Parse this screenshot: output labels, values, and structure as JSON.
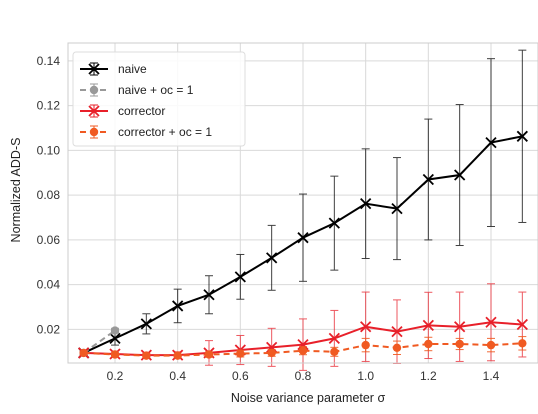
{
  "chart_data": {
    "type": "line",
    "xlabel": "Noise variance parameter σ",
    "ylabel": "Normalized ADD-S",
    "xlim": [
      0.05,
      1.55
    ],
    "ylim": [
      0.005,
      0.148
    ],
    "xticks": [
      0.2,
      0.4,
      0.6,
      0.8,
      1.0,
      1.2,
      1.4
    ],
    "xtick_labels": [
      "0.2",
      "0.4",
      "0.6",
      "0.8",
      "1.0",
      "1.2",
      "1.4"
    ],
    "yticks": [
      0.02,
      0.04,
      0.06,
      0.08,
      0.1,
      0.12,
      0.14
    ],
    "ytick_labels": [
      "0.02",
      "0.04",
      "0.06",
      "0.08",
      "0.10",
      "0.12",
      "0.14"
    ],
    "grid": true,
    "legend_position": "top-left",
    "series": [
      {
        "name": "naive",
        "color": "#000000",
        "marker": "x",
        "dashed": false,
        "x": [
          0.1,
          0.2,
          0.3,
          0.4,
          0.5,
          0.6,
          0.7,
          0.8,
          0.9,
          1.0,
          1.1,
          1.2,
          1.3,
          1.4,
          1.5
        ],
        "y": [
          0.0095,
          0.016,
          0.0225,
          0.0305,
          0.0355,
          0.0435,
          0.052,
          0.061,
          0.0675,
          0.0762,
          0.074,
          0.087,
          0.089,
          0.1035,
          0.1063
        ],
        "err": [
          0.001,
          0.003,
          0.0045,
          0.0075,
          0.0085,
          0.01,
          0.0145,
          0.0195,
          0.021,
          0.0245,
          0.0228,
          0.027,
          0.0315,
          0.0375,
          0.0385
        ]
      },
      {
        "name": "naive + oc = 1",
        "color": "#999999",
        "marker": "o",
        "dashed": true,
        "x": [
          0.1,
          0.2
        ],
        "y": [
          0.0095,
          0.0195
        ],
        "err": [
          0.0008,
          0.001
        ]
      },
      {
        "name": "corrector",
        "color": "#e8202a",
        "marker": "x",
        "dashed": false,
        "x": [
          0.1,
          0.2,
          0.3,
          0.4,
          0.5,
          0.6,
          0.7,
          0.8,
          0.9,
          1.0,
          1.1,
          1.2,
          1.3,
          1.4,
          1.5
        ],
        "y": [
          0.0095,
          0.009,
          0.0085,
          0.0085,
          0.0095,
          0.0108,
          0.012,
          0.0132,
          0.016,
          0.0212,
          0.019,
          0.0218,
          0.0212,
          0.0232,
          0.0222
        ],
        "err": [
          0.0005,
          0.0006,
          0.0008,
          0.0015,
          0.0055,
          0.0065,
          0.0085,
          0.0115,
          0.0125,
          0.0155,
          0.0142,
          0.0148,
          0.0155,
          0.0172,
          0.0145
        ]
      },
      {
        "name": "corrector + oc = 1",
        "color": "#f05a22",
        "marker": "o",
        "dashed": true,
        "x": [
          0.1,
          0.2,
          0.3,
          0.4,
          0.5,
          0.6,
          0.7,
          0.8,
          0.9,
          1.0,
          1.1,
          1.2,
          1.3,
          1.4,
          1.5
        ],
        "y": [
          0.0095,
          0.0088,
          0.0083,
          0.0083,
          0.0088,
          0.0092,
          0.0095,
          0.0105,
          0.01,
          0.013,
          0.0118,
          0.0135,
          0.0135,
          0.013,
          0.0138
        ],
        "err": [
          0.0005,
          0.0005,
          0.0006,
          0.0006,
          0.0012,
          0.0015,
          0.0015,
          0.0018,
          0.002,
          0.003,
          0.003,
          0.003,
          0.0025,
          0.003,
          0.003
        ]
      }
    ]
  }
}
